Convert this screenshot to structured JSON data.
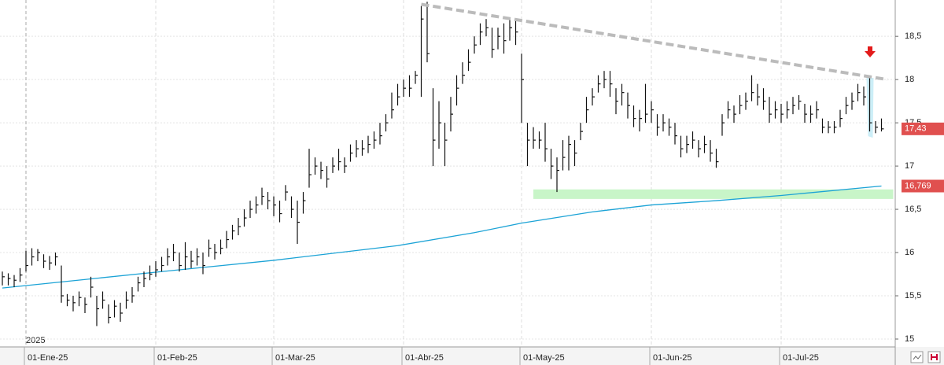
{
  "chart_data": {
    "type": "ohlc",
    "year_label": "2025",
    "categories": [
      null,
      null,
      null,
      null,
      "01-Ene-25",
      null,
      null,
      null,
      null,
      null,
      null,
      null,
      null,
      null,
      null,
      null,
      null,
      null,
      null,
      null,
      null,
      null,
      null,
      null,
      null,
      null,
      "01-Feb-25",
      null,
      null,
      null,
      null,
      null,
      null,
      null,
      null,
      null,
      null,
      null,
      null,
      null,
      null,
      null,
      null,
      null,
      null,
      null,
      "01-Mar-25",
      null,
      null,
      null,
      null,
      null,
      null,
      null,
      null,
      null,
      null,
      null,
      null,
      null,
      null,
      null,
      null,
      null,
      null,
      null,
      null,
      null,
      "01-Abr-25",
      null,
      null,
      null,
      null,
      null,
      null,
      null,
      null,
      null,
      null,
      null,
      null,
      null,
      null,
      null,
      null,
      null,
      null,
      null,
      "01-May-25",
      null,
      null,
      null,
      null,
      null,
      null,
      null,
      null,
      null,
      null,
      null,
      null,
      null,
      null,
      null,
      null,
      null,
      null,
      null,
      null,
      null,
      "01-Jun-25",
      null,
      null,
      null,
      null,
      null,
      null,
      null,
      null,
      null,
      null,
      null,
      null,
      null,
      null,
      null,
      null,
      null,
      null,
      null,
      null,
      null,
      "01-Jul-25",
      null,
      null,
      null,
      null,
      null,
      null,
      null,
      null,
      null,
      null,
      null,
      null,
      null,
      null,
      null,
      null,
      null
    ],
    "high": [
      15.78,
      15.76,
      15.74,
      15.82,
      16.02,
      16.05,
      16.04,
      15.98,
      15.96,
      16.0,
      15.85,
      15.52,
      15.5,
      15.55,
      15.48,
      15.72,
      15.5,
      15.55,
      15.4,
      15.45,
      15.42,
      15.55,
      15.6,
      15.72,
      15.78,
      15.85,
      15.9,
      15.95,
      16.05,
      16.1,
      16.0,
      16.12,
      16.02,
      16.05,
      16.0,
      16.15,
      16.1,
      16.15,
      16.25,
      16.32,
      16.4,
      16.5,
      16.6,
      16.65,
      16.75,
      16.7,
      16.65,
      16.6,
      16.78,
      16.65,
      16.6,
      16.7,
      17.2,
      17.1,
      17.05,
      17.0,
      17.1,
      17.2,
      17.1,
      17.25,
      17.3,
      17.3,
      17.35,
      17.4,
      17.5,
      17.6,
      17.85,
      17.95,
      18.0,
      18.05,
      18.1,
      18.85,
      18.9,
      17.9,
      17.75,
      17.5,
      17.8,
      18.05,
      18.2,
      18.35,
      18.5,
      18.65,
      18.7,
      18.6,
      18.6,
      18.65,
      18.72,
      18.7,
      18.3,
      17.5,
      17.45,
      17.4,
      17.5,
      17.2,
      17.1,
      17.3,
      17.35,
      17.3,
      17.5,
      17.8,
      17.9,
      18.05,
      18.1,
      18.1,
      17.9,
      17.95,
      17.85,
      17.7,
      17.65,
      17.95,
      17.75,
      17.6,
      17.6,
      17.55,
      17.5,
      17.35,
      17.35,
      17.4,
      17.3,
      17.35,
      17.3,
      17.2,
      17.6,
      17.75,
      17.7,
      17.82,
      17.85,
      18.05,
      17.95,
      17.9,
      17.8,
      17.75,
      17.72,
      17.75,
      17.8,
      17.82,
      17.72,
      17.7,
      17.75,
      17.55,
      17.52,
      17.52,
      17.65,
      17.8,
      17.85,
      17.95,
      17.92,
      18.02,
      17.52,
      17.55
    ],
    "low": [
      15.62,
      15.62,
      15.6,
      15.66,
      15.78,
      15.85,
      15.9,
      15.82,
      15.8,
      15.85,
      15.42,
      15.38,
      15.32,
      15.38,
      15.3,
      15.48,
      15.15,
      15.35,
      15.18,
      15.25,
      15.2,
      15.35,
      15.42,
      15.55,
      15.6,
      15.68,
      15.72,
      15.78,
      15.85,
      15.9,
      15.78,
      15.8,
      15.82,
      15.85,
      15.75,
      15.95,
      15.92,
      15.98,
      16.05,
      16.15,
      16.2,
      16.3,
      16.4,
      16.45,
      16.55,
      16.5,
      16.42,
      16.35,
      16.6,
      16.4,
      16.1,
      16.45,
      16.75,
      16.9,
      16.85,
      16.75,
      16.92,
      16.95,
      16.92,
      17.05,
      17.1,
      17.12,
      17.15,
      17.2,
      17.25,
      17.4,
      17.55,
      17.7,
      17.8,
      17.8,
      17.95,
      17.8,
      18.2,
      17.0,
      17.2,
      17.0,
      17.4,
      17.7,
      17.95,
      18.1,
      18.3,
      18.4,
      18.5,
      18.25,
      18.35,
      18.3,
      18.45,
      18.4,
      17.5,
      17.0,
      17.2,
      17.2,
      17.05,
      16.85,
      16.7,
      16.95,
      16.95,
      17.0,
      17.3,
      17.5,
      17.7,
      17.85,
      17.9,
      17.8,
      17.6,
      17.7,
      17.55,
      17.45,
      17.4,
      17.5,
      17.5,
      17.35,
      17.4,
      17.35,
      17.25,
      17.1,
      17.15,
      17.2,
      17.1,
      17.15,
      17.05,
      16.98,
      17.35,
      17.55,
      17.5,
      17.6,
      17.65,
      17.75,
      17.7,
      17.65,
      17.5,
      17.55,
      17.5,
      17.55,
      17.6,
      17.65,
      17.5,
      17.5,
      17.55,
      17.38,
      17.38,
      17.38,
      17.45,
      17.6,
      17.65,
      17.75,
      17.7,
      17.4,
      17.38,
      17.4
    ],
    "close": [
      15.72,
      15.7,
      15.68,
      15.74,
      15.85,
      15.95,
      16.0,
      15.9,
      15.88,
      15.95,
      15.5,
      15.45,
      15.42,
      15.48,
      15.4,
      15.6,
      15.35,
      15.45,
      15.25,
      15.38,
      15.3,
      15.45,
      15.5,
      15.65,
      15.7,
      15.75,
      15.8,
      15.85,
      15.95,
      16.0,
      15.85,
      15.95,
      15.9,
      15.95,
      15.85,
      16.05,
      16.0,
      16.05,
      16.15,
      16.25,
      16.3,
      16.4,
      16.5,
      16.55,
      16.65,
      16.6,
      16.55,
      16.45,
      16.7,
      16.5,
      16.35,
      16.6,
      16.9,
      17.0,
      16.95,
      16.85,
      17.0,
      17.05,
      17.0,
      17.15,
      17.2,
      17.2,
      17.25,
      17.3,
      17.35,
      17.5,
      17.65,
      17.8,
      17.9,
      17.9,
      18.05,
      18.7,
      18.3,
      17.3,
      17.5,
      17.3,
      17.6,
      17.9,
      18.05,
      18.2,
      18.4,
      18.55,
      18.6,
      18.35,
      18.5,
      18.45,
      18.6,
      18.55,
      18.0,
      17.3,
      17.3,
      17.3,
      17.2,
      17.0,
      16.95,
      17.1,
      17.25,
      17.15,
      17.4,
      17.65,
      17.8,
      17.95,
      18.0,
      17.95,
      17.75,
      17.85,
      17.7,
      17.55,
      17.55,
      17.6,
      17.65,
      17.45,
      17.5,
      17.45,
      17.35,
      17.2,
      17.25,
      17.3,
      17.2,
      17.25,
      17.15,
      17.05,
      17.5,
      17.65,
      17.6,
      17.7,
      17.75,
      17.85,
      17.8,
      17.75,
      17.6,
      17.65,
      17.6,
      17.65,
      17.7,
      17.75,
      17.6,
      17.6,
      17.65,
      17.45,
      17.45,
      17.45,
      17.55,
      17.7,
      17.75,
      17.85,
      17.8,
      17.5,
      17.45,
      17.43
    ],
    "bar_color": "#111111",
    "moving_average": {
      "color": "#1ca3d6",
      "x": [
        0,
        27,
        46,
        67,
        80,
        88,
        100,
        110,
        121,
        132,
        149
      ],
      "values": [
        15.59,
        15.78,
        15.91,
        16.08,
        16.23,
        16.34,
        16.47,
        16.55,
        16.6,
        16.66,
        16.769
      ]
    },
    "trendline": {
      "color": "#bbbbbb",
      "x": [
        71,
        150
      ],
      "values": [
        18.87,
        18.0
      ]
    },
    "support_zone": {
      "color": "#c8f5c8",
      "x": [
        90,
        151
      ],
      "values": [
        16.62,
        16.73
      ]
    },
    "last_price": {
      "value": 17.43,
      "label": "17,43"
    },
    "ma_last": {
      "value": 16.769,
      "label": "16,769"
    },
    "label_color": "#e0504f",
    "ylim": [
      14.909,
      18.92
    ],
    "yticks": [
      15,
      {
        "value": 15.5,
        "label": "15,5"
      },
      16,
      {
        "value": 16.5,
        "label": "16,5"
      },
      17,
      {
        "value": 17.5,
        "label": "17,5"
      },
      18,
      {
        "value": 18.5,
        "label": "18,5"
      }
    ],
    "grid": true
  }
}
